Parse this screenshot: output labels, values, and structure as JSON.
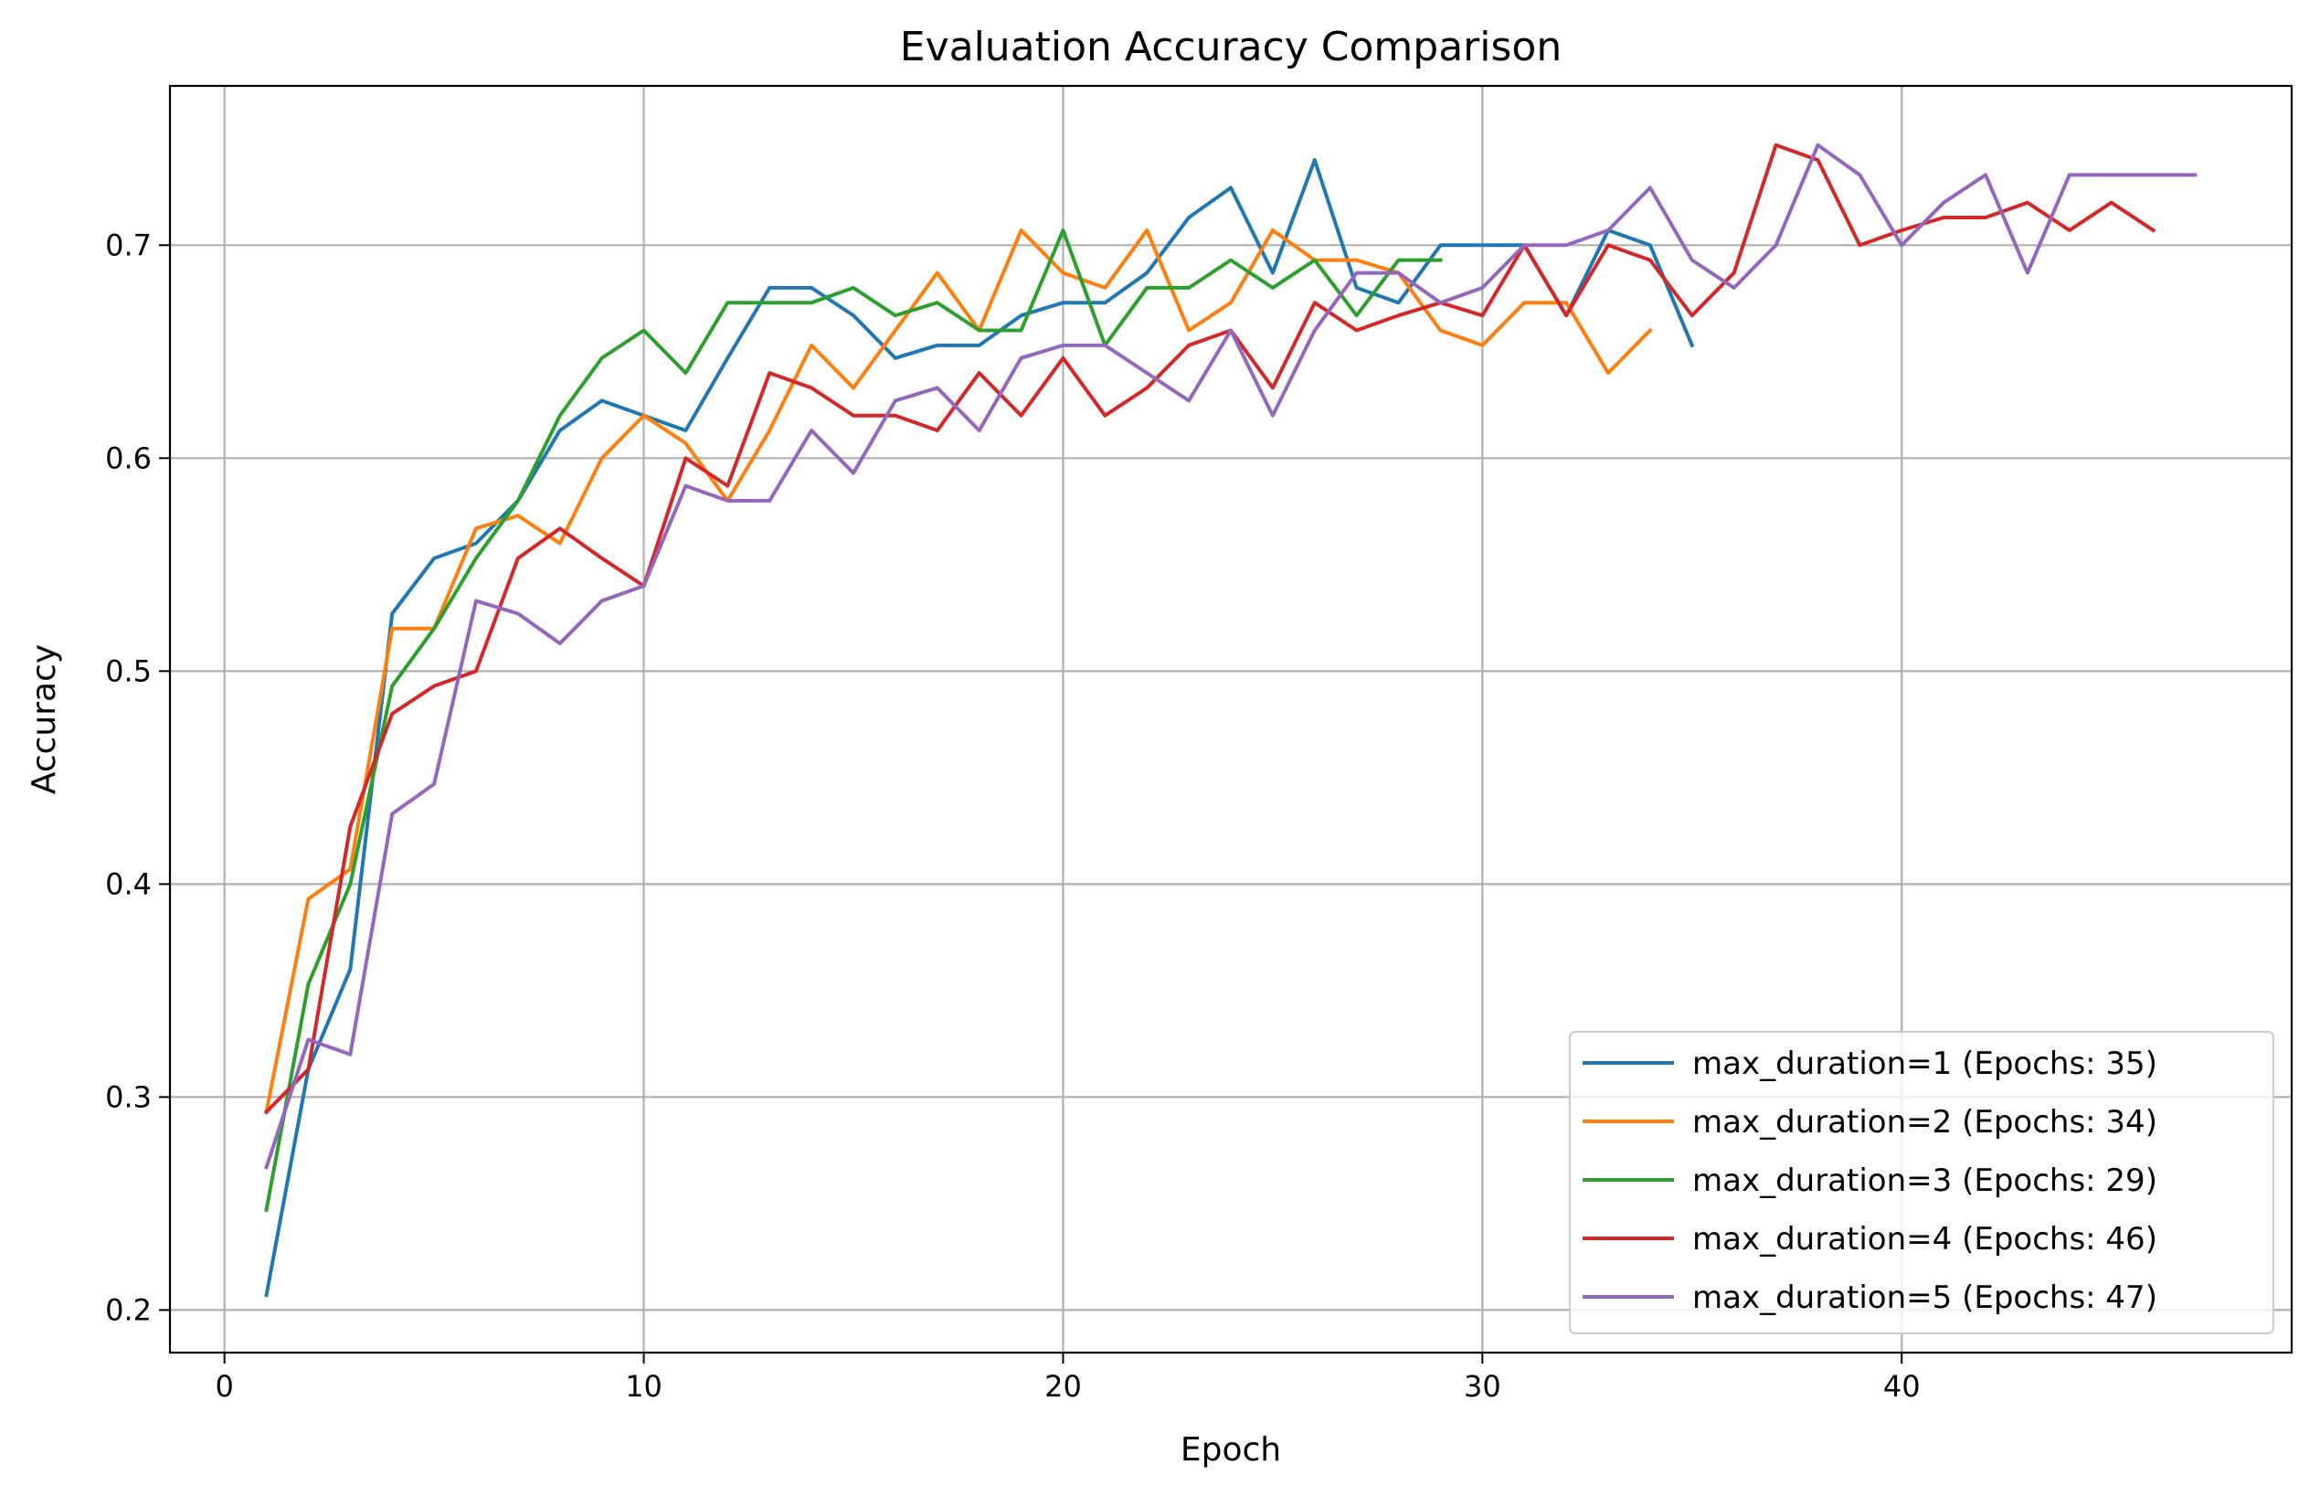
{
  "chart_data": {
    "type": "line",
    "title": "Evaluation Accuracy Comparison",
    "xlabel": "Epoch",
    "ylabel": "Accuracy",
    "xlim": [
      -1.3,
      49.3
    ],
    "ylim": [
      0.18,
      0.7748
    ],
    "x_ticks": [
      0,
      10,
      20,
      30,
      40
    ],
    "y_ticks": [
      0.2,
      0.3,
      0.4,
      0.5,
      0.6,
      0.7
    ],
    "x_tick_labels": [
      "0",
      "10",
      "20",
      "30",
      "40"
    ],
    "y_tick_labels": [
      "0.2",
      "0.3",
      "0.4",
      "0.5",
      "0.6",
      "0.7"
    ],
    "grid": true,
    "legend_position": "lower-right",
    "series": [
      {
        "name": "max_duration=1 (Epochs: 35)",
        "color": "#1f77b4",
        "values": [
          0.207,
          0.313,
          0.36,
          0.527,
          0.553,
          0.56,
          0.58,
          0.613,
          0.627,
          0.62,
          0.613,
          0.647,
          0.68,
          0.68,
          0.667,
          0.647,
          0.653,
          0.653,
          0.667,
          0.673,
          0.673,
          0.687,
          0.713,
          0.727,
          0.687,
          0.74,
          0.68,
          0.673,
          0.7,
          0.7,
          0.7,
          0.667,
          0.707,
          0.7,
          0.653
        ]
      },
      {
        "name": "max_duration=2 (Epochs: 34)",
        "color": "#ff7f0e",
        "values": [
          0.293,
          0.393,
          0.407,
          0.52,
          0.52,
          0.567,
          0.573,
          0.56,
          0.6,
          0.62,
          0.607,
          0.58,
          0.613,
          0.653,
          0.633,
          0.66,
          0.687,
          0.66,
          0.707,
          0.687,
          0.68,
          0.707,
          0.66,
          0.673,
          0.707,
          0.693,
          0.693,
          0.687,
          0.66,
          0.653,
          0.673,
          0.673,
          0.64,
          0.66
        ]
      },
      {
        "name": "max_duration=3 (Epochs: 29)",
        "color": "#2ca02c",
        "values": [
          0.247,
          0.353,
          0.4,
          0.493,
          0.52,
          0.553,
          0.58,
          0.62,
          0.647,
          0.66,
          0.64,
          0.673,
          0.673,
          0.673,
          0.68,
          0.667,
          0.673,
          0.66,
          0.66,
          0.707,
          0.653,
          0.68,
          0.68,
          0.693,
          0.68,
          0.693,
          0.667,
          0.693,
          0.693
        ]
      },
      {
        "name": "max_duration=4 (Epochs: 46)",
        "color": "#d62728",
        "values": [
          0.293,
          0.313,
          0.427,
          0.48,
          0.493,
          0.5,
          0.553,
          0.567,
          0.553,
          0.54,
          0.6,
          0.587,
          0.64,
          0.633,
          0.62,
          0.62,
          0.613,
          0.64,
          0.62,
          0.647,
          0.62,
          0.633,
          0.653,
          0.66,
          0.633,
          0.673,
          0.66,
          0.667,
          0.673,
          0.667,
          0.7,
          0.667,
          0.7,
          0.693,
          0.667,
          0.687,
          0.747,
          0.74,
          0.7,
          0.707,
          0.713,
          0.713,
          0.72,
          0.707,
          0.72,
          0.707
        ]
      },
      {
        "name": "max_duration=5 (Epochs: 47)",
        "color": "#9467bd",
        "values": [
          0.267,
          0.327,
          0.32,
          0.433,
          0.447,
          0.533,
          0.527,
          0.513,
          0.533,
          0.54,
          0.587,
          0.58,
          0.58,
          0.613,
          0.593,
          0.627,
          0.633,
          0.613,
          0.647,
          0.653,
          0.653,
          0.64,
          0.627,
          0.66,
          0.62,
          0.66,
          0.687,
          0.687,
          0.673,
          0.68,
          0.7,
          0.7,
          0.707,
          0.727,
          0.693,
          0.68,
          0.7,
          0.747,
          0.733,
          0.7,
          0.72,
          0.733,
          0.687,
          0.733,
          0.733,
          0.733,
          0.733
        ]
      }
    ]
  }
}
